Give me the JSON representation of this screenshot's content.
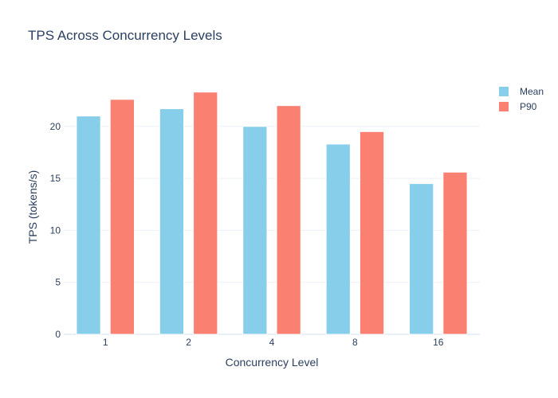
{
  "chart_data": {
    "type": "bar",
    "title": "TPS Across Concurrency Levels",
    "xlabel": "Concurrency Level",
    "ylabel": "TPS (tokens/s)",
    "categories": [
      "1",
      "2",
      "4",
      "8",
      "16"
    ],
    "ylim": [
      0,
      24.5
    ],
    "yticks": [
      0,
      5,
      10,
      15,
      20
    ],
    "grid": true,
    "legend_position": "top-right",
    "series": [
      {
        "name": "Mean",
        "color": "#87ceeb",
        "values": [
          21.0,
          21.7,
          20.0,
          18.3,
          14.5
        ]
      },
      {
        "name": "P90",
        "color": "#fa8072",
        "values": [
          22.6,
          23.3,
          22.0,
          19.5,
          15.6
        ]
      }
    ]
  }
}
